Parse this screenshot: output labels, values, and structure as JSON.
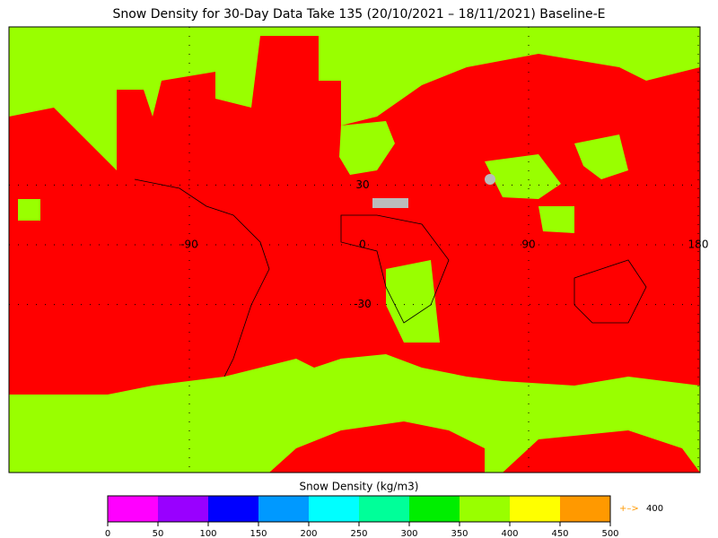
{
  "title": "Snow Density for 30-Day Data Take 135 (20/10/2021 – 18/11/2021) Baseline-E",
  "map": {
    "lat_labels": [
      30,
      0,
      -30
    ],
    "lon_labels": [
      -90,
      90,
      180
    ]
  },
  "colorbar": {
    "label": "Snow Density (kg/m3)",
    "ticks": [
      0,
      50,
      100,
      150,
      200,
      250,
      300,
      350,
      400,
      450,
      500
    ],
    "colors": [
      "#ff00ff",
      "#9900ff",
      "#0000ff",
      "#0099ff",
      "#00ffff",
      "#00ff99",
      "#00ee00",
      "#99ff00",
      "#ffff00",
      "#ff9900"
    ],
    "overflow": {
      "symbol": "+–>",
      "value": 400,
      "color": "#ff9900"
    }
  }
}
